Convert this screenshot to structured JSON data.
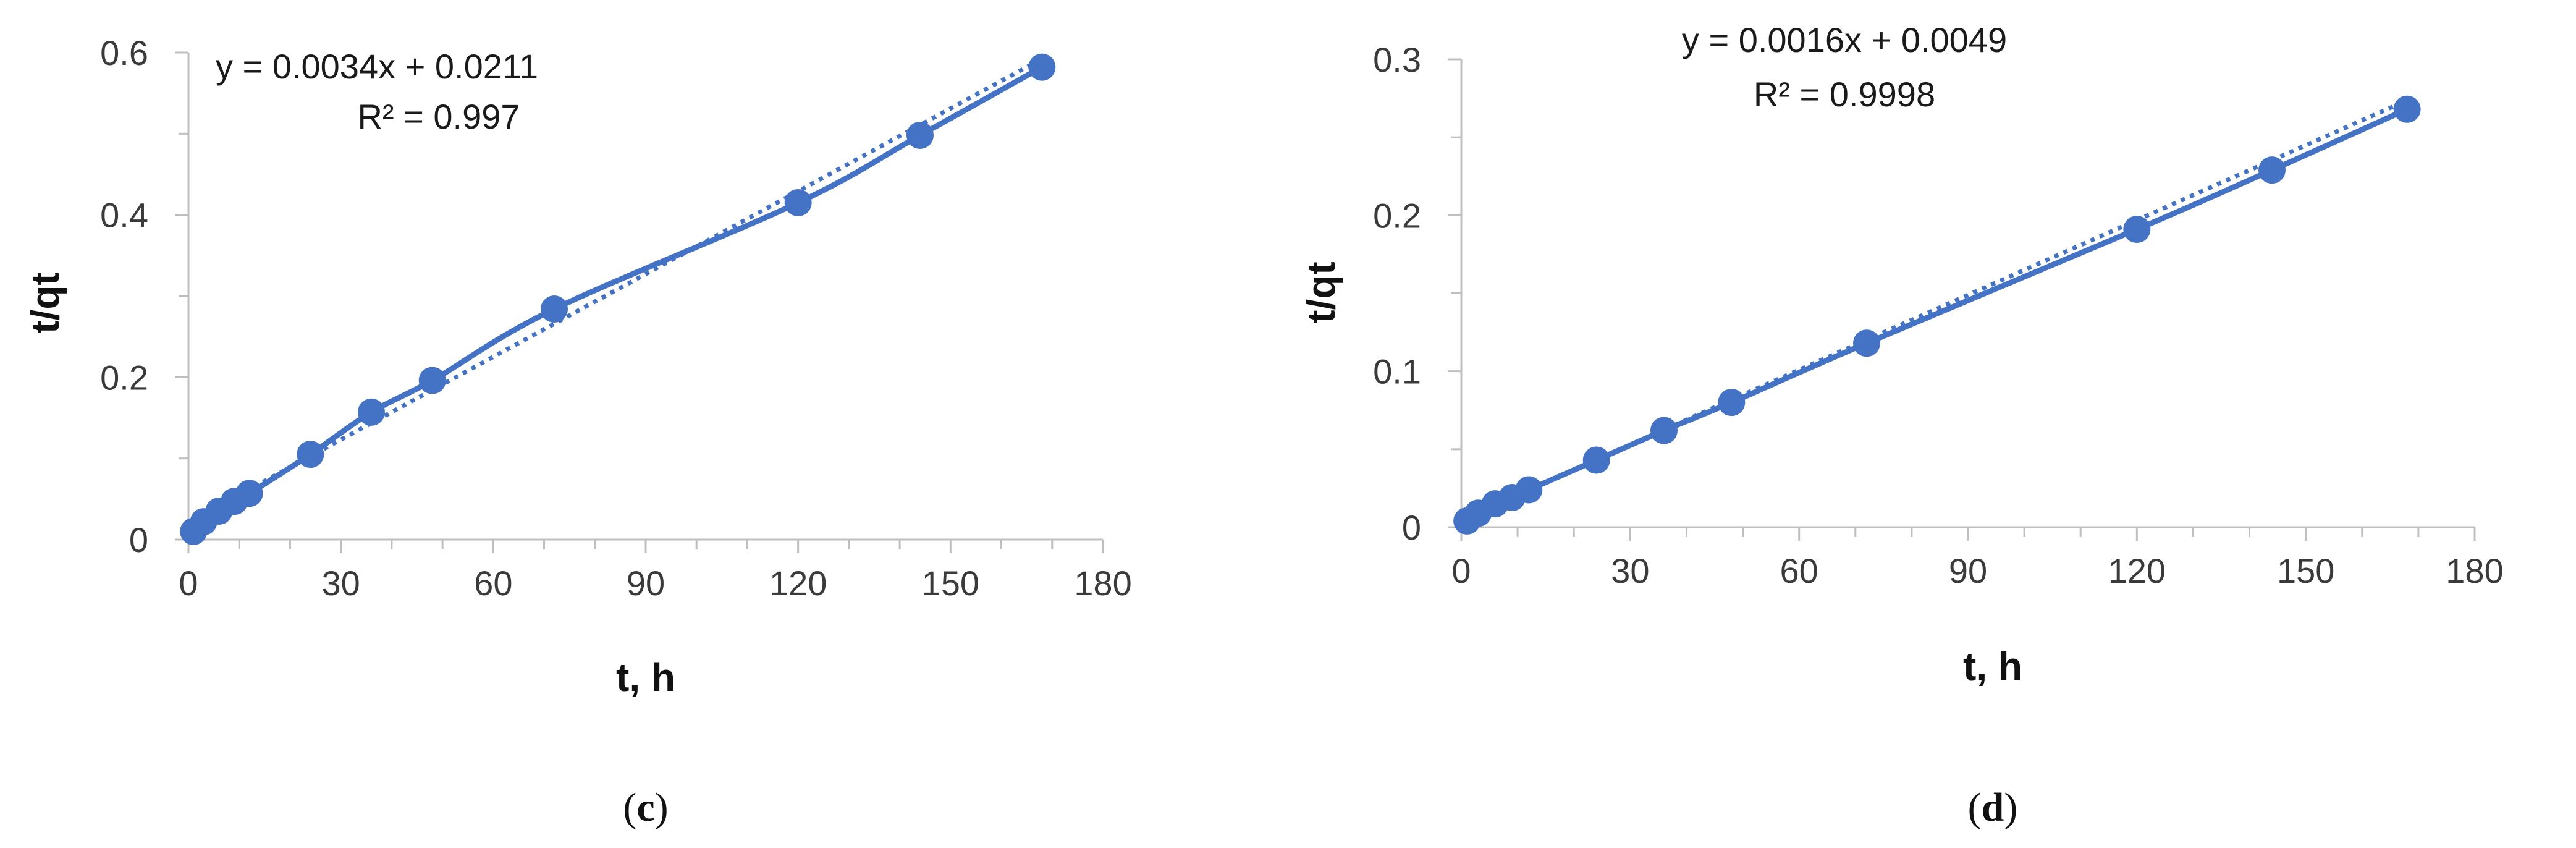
{
  "chart_data": [
    {
      "type": "scatter",
      "panel_label": "(c)",
      "panel_letter": "c",
      "xlabel": "t, h",
      "ylabel": "t/qt",
      "xlim": [
        0,
        180
      ],
      "ylim": [
        0,
        0.6
      ],
      "x_ticks": [
        0,
        30,
        60,
        90,
        120,
        150,
        180
      ],
      "y_ticks": [
        0,
        0.2,
        0.4,
        0.6
      ],
      "y_tick_labels": [
        "0",
        "0.2",
        "0.4",
        "0.6"
      ],
      "grid": false,
      "marker_color": "#4472C4",
      "equation": "y = 0.0034x + 0.0211",
      "r_squared": "R² = 0.997",
      "trendline": {
        "slope": 0.0034,
        "intercept": 0.0211,
        "style": "dotted"
      },
      "series": [
        {
          "x": [
            1,
            3,
            6,
            9,
            12,
            24,
            36,
            48,
            72,
            120,
            144,
            168
          ],
          "y": [
            0.01,
            0.022,
            0.035,
            0.047,
            0.057,
            0.105,
            0.157,
            0.196,
            0.284,
            0.415,
            0.498,
            0.582
          ]
        }
      ]
    },
    {
      "type": "scatter",
      "panel_label": "(d)",
      "panel_letter": "d",
      "xlabel": "t, h",
      "ylabel": "t/qt",
      "xlim": [
        0,
        180
      ],
      "ylim": [
        0,
        0.3
      ],
      "x_ticks": [
        0,
        30,
        60,
        90,
        120,
        150,
        180
      ],
      "y_ticks": [
        0,
        0.1,
        0.2,
        0.3
      ],
      "y_tick_labels": [
        "0",
        "0.1",
        "0.2",
        "0.3"
      ],
      "grid": false,
      "marker_color": "#4472C4",
      "equation": "y = 0.0016x + 0.0049",
      "r_squared": "R² = 0.9998",
      "trendline": {
        "slope": 0.0016,
        "intercept": 0.0049,
        "style": "dotted"
      },
      "series": [
        {
          "x": [
            1,
            3,
            6,
            9,
            12,
            24,
            36,
            48,
            72,
            120,
            144,
            168
          ],
          "y": [
            0.004,
            0.009,
            0.015,
            0.019,
            0.024,
            0.043,
            0.062,
            0.08,
            0.118,
            0.191,
            0.229,
            0.268
          ]
        }
      ]
    }
  ]
}
